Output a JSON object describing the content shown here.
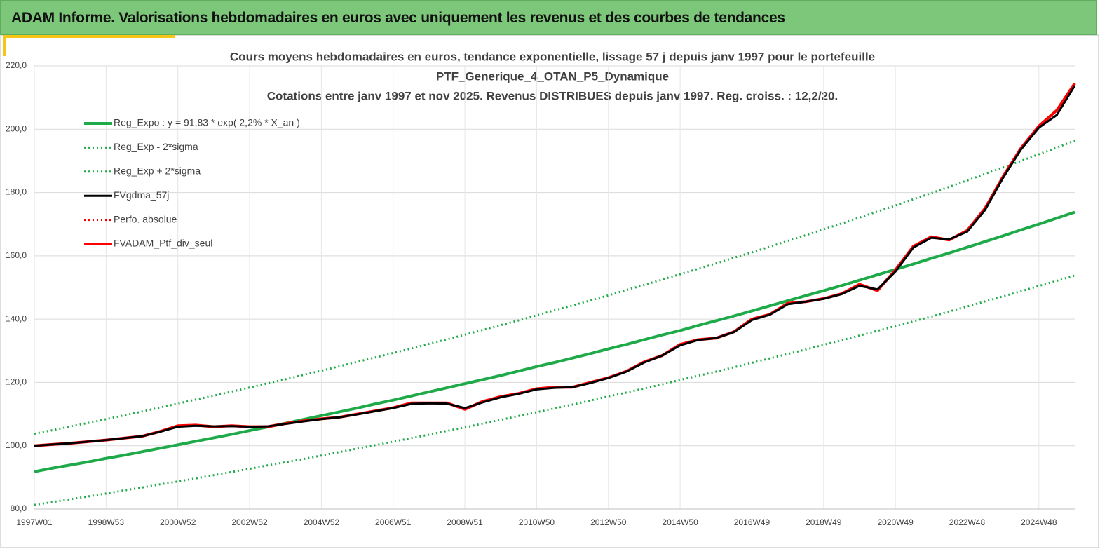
{
  "header": {
    "title": "ADAM Informe. Valorisations hebdomadaires en euros avec uniquement les revenus et des courbes de tendances"
  },
  "chart_data": {
    "type": "line",
    "title": [
      "Cours moyens hebdomadaires  en euros, tendance exponentielle, lissage 57 j depuis janv 1997 pour le portefeuille",
      "PTF_Generique_4_OTAN_P5_Dynamique",
      "Cotations  entre janv 1997 et nov 2025. Revenus DISTRIBUES depuis janv 1997. Reg. croiss. : 12,2/20."
    ],
    "categories": [
      "1997W01",
      null,
      null,
      null,
      "1998W53",
      null,
      null,
      null,
      "2000W52",
      null,
      null,
      null,
      "2002W52",
      null,
      null,
      null,
      "2004W52",
      null,
      null,
      null,
      "2006W51",
      null,
      null,
      null,
      "2008W51",
      null,
      null,
      null,
      "2010W50",
      null,
      null,
      null,
      "2012W50",
      null,
      null,
      null,
      "2014W50",
      null,
      null,
      null,
      "2016W49",
      null,
      null,
      null,
      "2018W49",
      null,
      null,
      null,
      "2020W49",
      null,
      null,
      null,
      "2022W48",
      null,
      null,
      null,
      "2024W48",
      null,
      null
    ],
    "ylim": [
      80,
      220
    ],
    "yticks": [
      {
        "value": 80,
        "label": "80,0"
      },
      {
        "value": 100,
        "label": "100,0"
      },
      {
        "value": 120,
        "label": "120,0"
      },
      {
        "value": 140,
        "label": "140,0"
      },
      {
        "value": 160,
        "label": "160,0"
      },
      {
        "value": 180,
        "label": "180,0"
      },
      {
        "value": 200,
        "label": "200,0"
      },
      {
        "value": 220,
        "label": "220,0"
      }
    ],
    "grid": true,
    "legend": "upper left",
    "series": [
      {
        "name": "Reg_Expo : y = 91,83 * exp( 2,2% *  X_an )",
        "color": "#1faa4a",
        "style": "solid",
        "width": 4,
        "values": [
          91.8,
          92.9,
          93.9,
          94.9,
          96.0,
          97.0,
          98.1,
          99.2,
          100.3,
          101.4,
          102.5,
          103.6,
          104.8,
          105.9,
          107.1,
          108.3,
          109.5,
          110.7,
          111.9,
          113.2,
          114.4,
          115.7,
          117.0,
          118.3,
          119.6,
          120.9,
          122.2,
          123.6,
          125.0,
          126.3,
          127.7,
          129.1,
          130.6,
          132.0,
          133.5,
          135.0,
          136.4,
          138.0,
          139.5,
          141.0,
          142.6,
          144.2,
          145.8,
          147.4,
          149.0,
          150.6,
          152.3,
          154.0,
          155.7,
          157.4,
          159.2,
          160.9,
          162.7,
          164.5,
          166.3,
          168.2,
          170.0,
          171.9,
          173.8
        ]
      },
      {
        "name": "Reg_Exp - 2*sigma",
        "color": "#1faa4a",
        "style": "dotted",
        "width": 3,
        "values": [
          81.3,
          82.2,
          83.1,
          84.0,
          84.9,
          85.9,
          86.8,
          87.8,
          88.7,
          89.7,
          90.7,
          91.7,
          92.7,
          93.8,
          94.8,
          95.8,
          96.9,
          98.0,
          99.1,
          100.2,
          101.3,
          102.4,
          103.5,
          104.7,
          105.8,
          107.0,
          108.2,
          109.4,
          110.6,
          111.8,
          113.0,
          114.3,
          115.6,
          116.8,
          118.1,
          119.4,
          120.8,
          122.1,
          123.4,
          124.8,
          126.2,
          127.6,
          129.0,
          130.4,
          131.9,
          133.3,
          134.8,
          136.3,
          137.8,
          139.3,
          140.8,
          142.4,
          144.0,
          145.6,
          147.2,
          148.8,
          150.5,
          152.1,
          153.8
        ]
      },
      {
        "name": "Reg_Exp + 2*sigma",
        "color": "#1faa4a",
        "style": "dotted",
        "width": 3,
        "values": [
          103.8,
          104.9,
          106.1,
          107.2,
          108.4,
          109.6,
          110.8,
          112.1,
          113.3,
          114.6,
          115.8,
          117.1,
          118.4,
          119.7,
          121.0,
          122.4,
          123.7,
          125.1,
          126.5,
          127.9,
          129.3,
          130.7,
          132.2,
          133.6,
          135.1,
          136.6,
          138.1,
          139.6,
          141.2,
          142.8,
          144.3,
          145.9,
          147.5,
          149.2,
          150.8,
          152.5,
          154.2,
          155.9,
          157.6,
          159.4,
          161.1,
          162.9,
          164.7,
          166.5,
          168.4,
          170.2,
          172.1,
          174.0,
          175.9,
          177.9,
          179.8,
          181.8,
          183.8,
          185.9,
          187.9,
          190.0,
          192.1,
          194.2,
          196.4
        ]
      },
      {
        "name": "FVgdma_57j",
        "color": "#000000",
        "style": "solid",
        "width": 3,
        "values": [
          100,
          100.4,
          100.8,
          101.3,
          101.8,
          102.4,
          103,
          104.4,
          106,
          106.3,
          106.1,
          106.2,
          106,
          106.1,
          106.9,
          107.7,
          108.4,
          109,
          109.9,
          110.9,
          111.9,
          113.2,
          113.4,
          113.3,
          111.9,
          113.7,
          115.3,
          116.4,
          117.8,
          118.3,
          118.5,
          119.8,
          121.4,
          123.4,
          126.3,
          128.5,
          131.7,
          133.4,
          134,
          135.9,
          139.7,
          141.4,
          144.7,
          145.5,
          146.4,
          147.9,
          150.5,
          149.4,
          155,
          162.6,
          165.7,
          165.2,
          167.6,
          174.5,
          184.6,
          193.6,
          200.5,
          204.5,
          213.8
        ]
      },
      {
        "name": "Perfo. absolue",
        "color": "#ff0000",
        "style": "dotted",
        "width": 3,
        "values": [
          100,
          100.4,
          100.8,
          101.3,
          101.8,
          102.4,
          103,
          104.5,
          106.3,
          106.5,
          106,
          106.3,
          106,
          106,
          107,
          107.8,
          108.5,
          109,
          110,
          111,
          112,
          113.5,
          113.5,
          113.5,
          111.5,
          114,
          115.5,
          116.5,
          118,
          118.5,
          118.5,
          120,
          121.5,
          123.5,
          126.5,
          128.5,
          132,
          133.5,
          134,
          136,
          140,
          141.5,
          145,
          145.5,
          146.5,
          148,
          151,
          149,
          155.5,
          163,
          166,
          165,
          168,
          175,
          185,
          194,
          201,
          206,
          214.5
        ]
      },
      {
        "name": "FVADAM_Ptf_div_seul",
        "color": "#ff0000",
        "style": "solid",
        "width": 4,
        "values": [
          100,
          100.4,
          100.8,
          101.3,
          101.8,
          102.4,
          103,
          104.5,
          106.3,
          106.5,
          106,
          106.3,
          106,
          106,
          107,
          107.8,
          108.5,
          109,
          110,
          111,
          112,
          113.5,
          113.5,
          113.5,
          111.5,
          114,
          115.5,
          116.5,
          118,
          118.5,
          118.5,
          120,
          121.5,
          123.5,
          126.5,
          128.5,
          132,
          133.5,
          134,
          136,
          140,
          141.5,
          145,
          145.5,
          146.5,
          148,
          151,
          149,
          155.5,
          163,
          166,
          165,
          168,
          175,
          185,
          194,
          201,
          206,
          214.5
        ]
      }
    ]
  }
}
